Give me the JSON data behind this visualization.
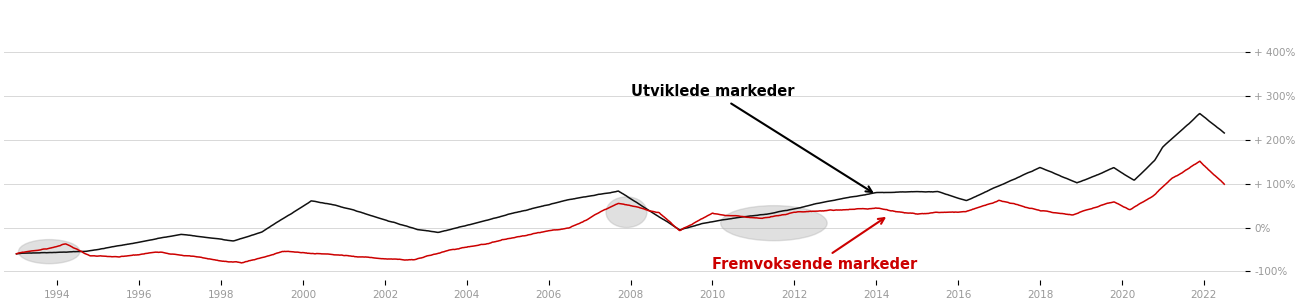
{
  "xlim": [
    1992.7,
    2023.0
  ],
  "ylim": [
    -120,
    510
  ],
  "yticks": [
    -100,
    0,
    100,
    200,
    300,
    400
  ],
  "ytick_labels": [
    "-100%",
    "0%",
    "+ 100%",
    "+ 200%",
    "+ 300%",
    "+ 400%"
  ],
  "xticks": [
    1994,
    1996,
    1998,
    2000,
    2002,
    2004,
    2006,
    2008,
    2010,
    2012,
    2014,
    2016,
    2018,
    2020,
    2022
  ],
  "developed_label": "Utviklede markeder",
  "emerging_label": "Fremvoksende markeder",
  "developed_color": "#111111",
  "emerging_color": "#cc0000",
  "background_color": "#ffffff",
  "grid_color": "#d8d8d8",
  "ellipse_color": "#b0b0b0",
  "ellipse_alpha": 0.38,
  "line_width": 1.1
}
